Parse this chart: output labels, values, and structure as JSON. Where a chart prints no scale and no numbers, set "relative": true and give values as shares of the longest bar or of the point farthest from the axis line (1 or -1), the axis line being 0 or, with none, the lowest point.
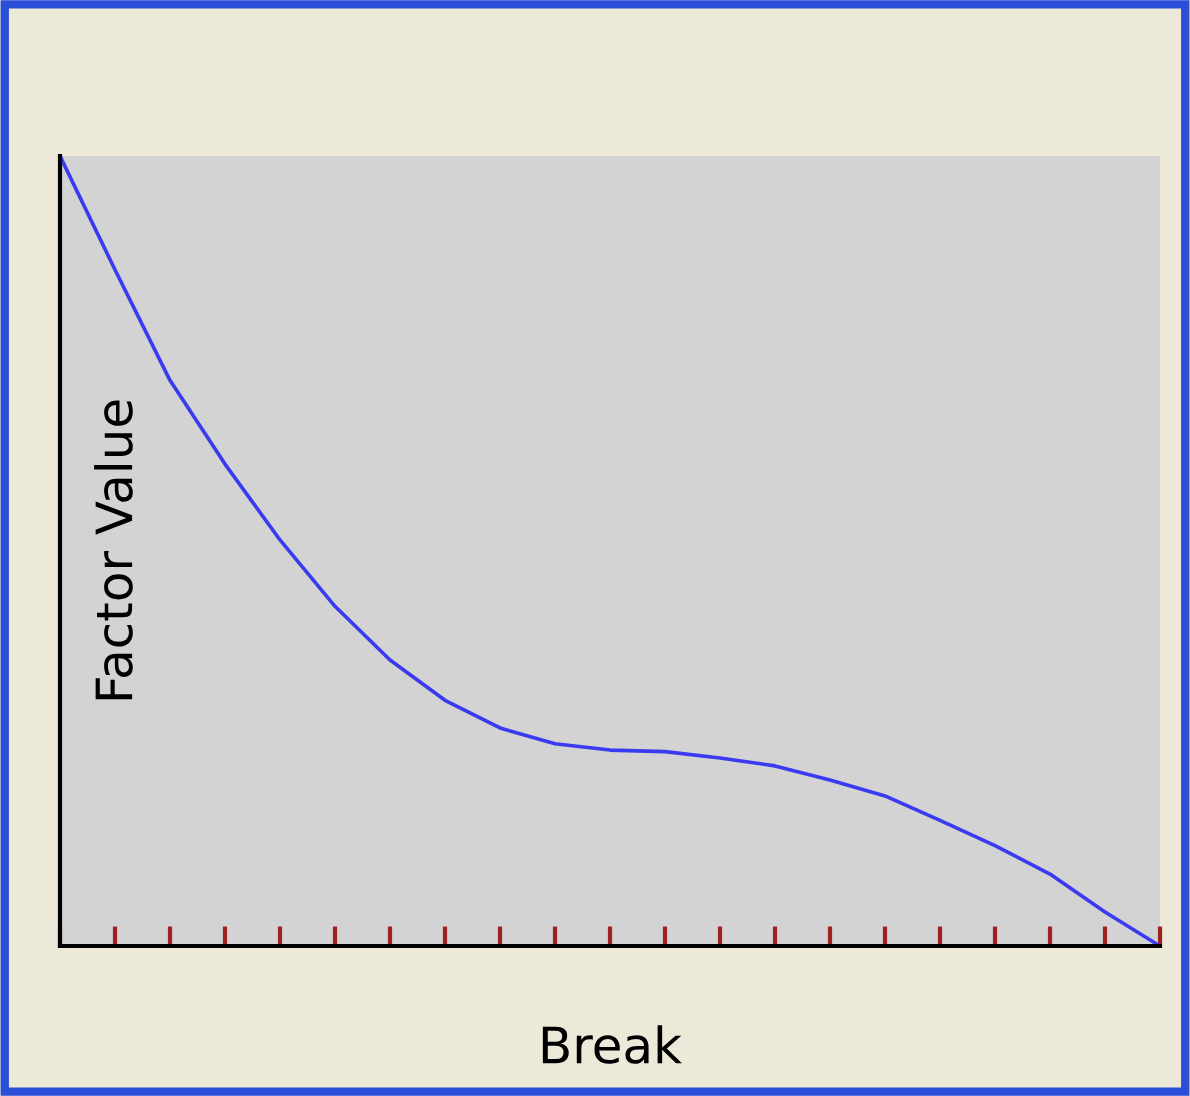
{
  "chart_data": {
    "type": "line",
    "relative": true,
    "xlabel": "Break",
    "ylabel": "Factor Value",
    "categories": [
      null,
      null,
      null,
      null,
      null,
      null,
      null,
      null,
      null,
      null,
      null,
      null,
      null,
      null,
      null,
      null,
      null,
      null,
      null,
      null,
      null
    ],
    "series": [
      {
        "color": "#3a3af0",
        "values": [
          1.0,
          0.856,
          0.716,
          0.61,
          0.514,
          0.43,
          0.362,
          0.311,
          0.276,
          0.256,
          0.248,
          0.246,
          0.238,
          0.228,
          0.21,
          0.19,
          0.159,
          0.127,
          0.091,
          0.043,
          0.0
        ]
      }
    ],
    "grid": false,
    "legend": false,
    "marker": "none",
    "line_style": "solid"
  }
}
